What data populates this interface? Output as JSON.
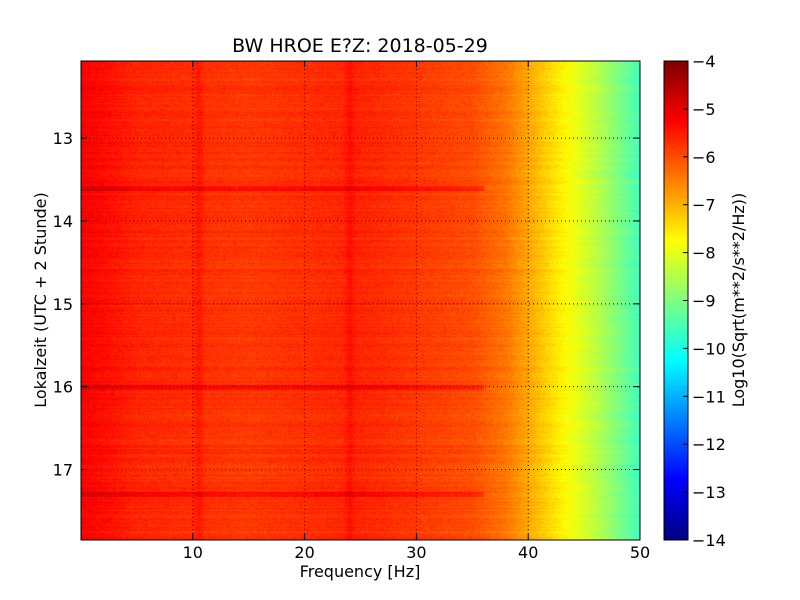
{
  "chart_data": {
    "type": "heatmap",
    "title": "BW HROE E?Z: 2018-05-29",
    "xlabel": "Frequency [Hz]",
    "ylabel": "Lokalzeit (UTC + 2 Stunde)",
    "xlim": [
      0,
      50
    ],
    "ylim": [
      12.07,
      17.85
    ],
    "x_ticks": [
      10,
      20,
      30,
      40,
      50
    ],
    "y_ticks": [
      13,
      14,
      15,
      16,
      17
    ],
    "x_tick_labels": [
      "10",
      "20",
      "30",
      "40",
      "50"
    ],
    "y_tick_labels": [
      "13",
      "14",
      "15",
      "16",
      "17"
    ],
    "y_inverted": true,
    "grid": true,
    "colormap": "jet",
    "colorbar": {
      "label": "Log10(Sqrt(m**2/s**2/Hz))",
      "range": [
        -14,
        -4
      ],
      "ticks": [
        -4,
        -5,
        -6,
        -7,
        -8,
        -9,
        -10,
        -11,
        -12,
        -13,
        -14
      ],
      "tick_labels": [
        "−4",
        "−5",
        "−6",
        "−7",
        "−8",
        "−9",
        "−10",
        "−11",
        "−12",
        "−13",
        "−14"
      ]
    },
    "spectral_profile": {
      "frequency_hz": [
        0,
        5,
        10,
        15,
        20,
        25,
        30,
        35,
        38,
        40,
        42,
        44,
        46,
        48,
        50
      ],
      "log10_amplitude": [
        -5.2,
        -5.6,
        -5.7,
        -5.8,
        -5.7,
        -5.6,
        -5.8,
        -6.0,
        -6.4,
        -6.9,
        -7.4,
        -7.9,
        -8.4,
        -9.0,
        -9.6
      ]
    },
    "strong_bands_local_time": [
      13.6,
      16.0,
      17.3
    ],
    "strong_lines_hz": [
      10.5,
      24.0
    ]
  }
}
